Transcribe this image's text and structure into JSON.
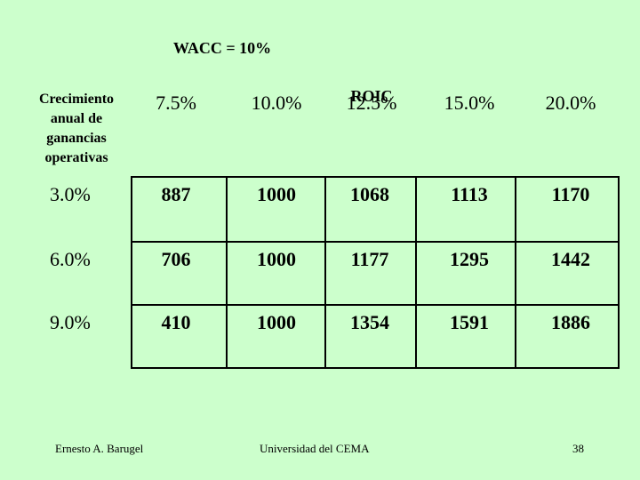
{
  "title": "WACC = 10%",
  "row_header": "Crecimiento anual de ganancias operativas",
  "col_group_label": "ROIC",
  "columns": [
    "7.5%",
    "10.0%",
    "12.5%",
    "15.0%",
    "20.0%"
  ],
  "rows": [
    {
      "growth": "3.0%",
      "values": [
        "887",
        "1000",
        "1068",
        "1113",
        "1170"
      ]
    },
    {
      "growth": "6.0%",
      "values": [
        "706",
        "1000",
        "1177",
        "1295",
        "1442"
      ]
    },
    {
      "growth": "9.0%",
      "values": [
        "410",
        "1000",
        "1354",
        "1591",
        "1886"
      ]
    }
  ],
  "footer": {
    "author": "Ernesto A. Barugel",
    "institution": "Universidad del CEMA",
    "page": "38"
  },
  "colors": {
    "background": "#ccffcc",
    "lines": "#000000"
  }
}
